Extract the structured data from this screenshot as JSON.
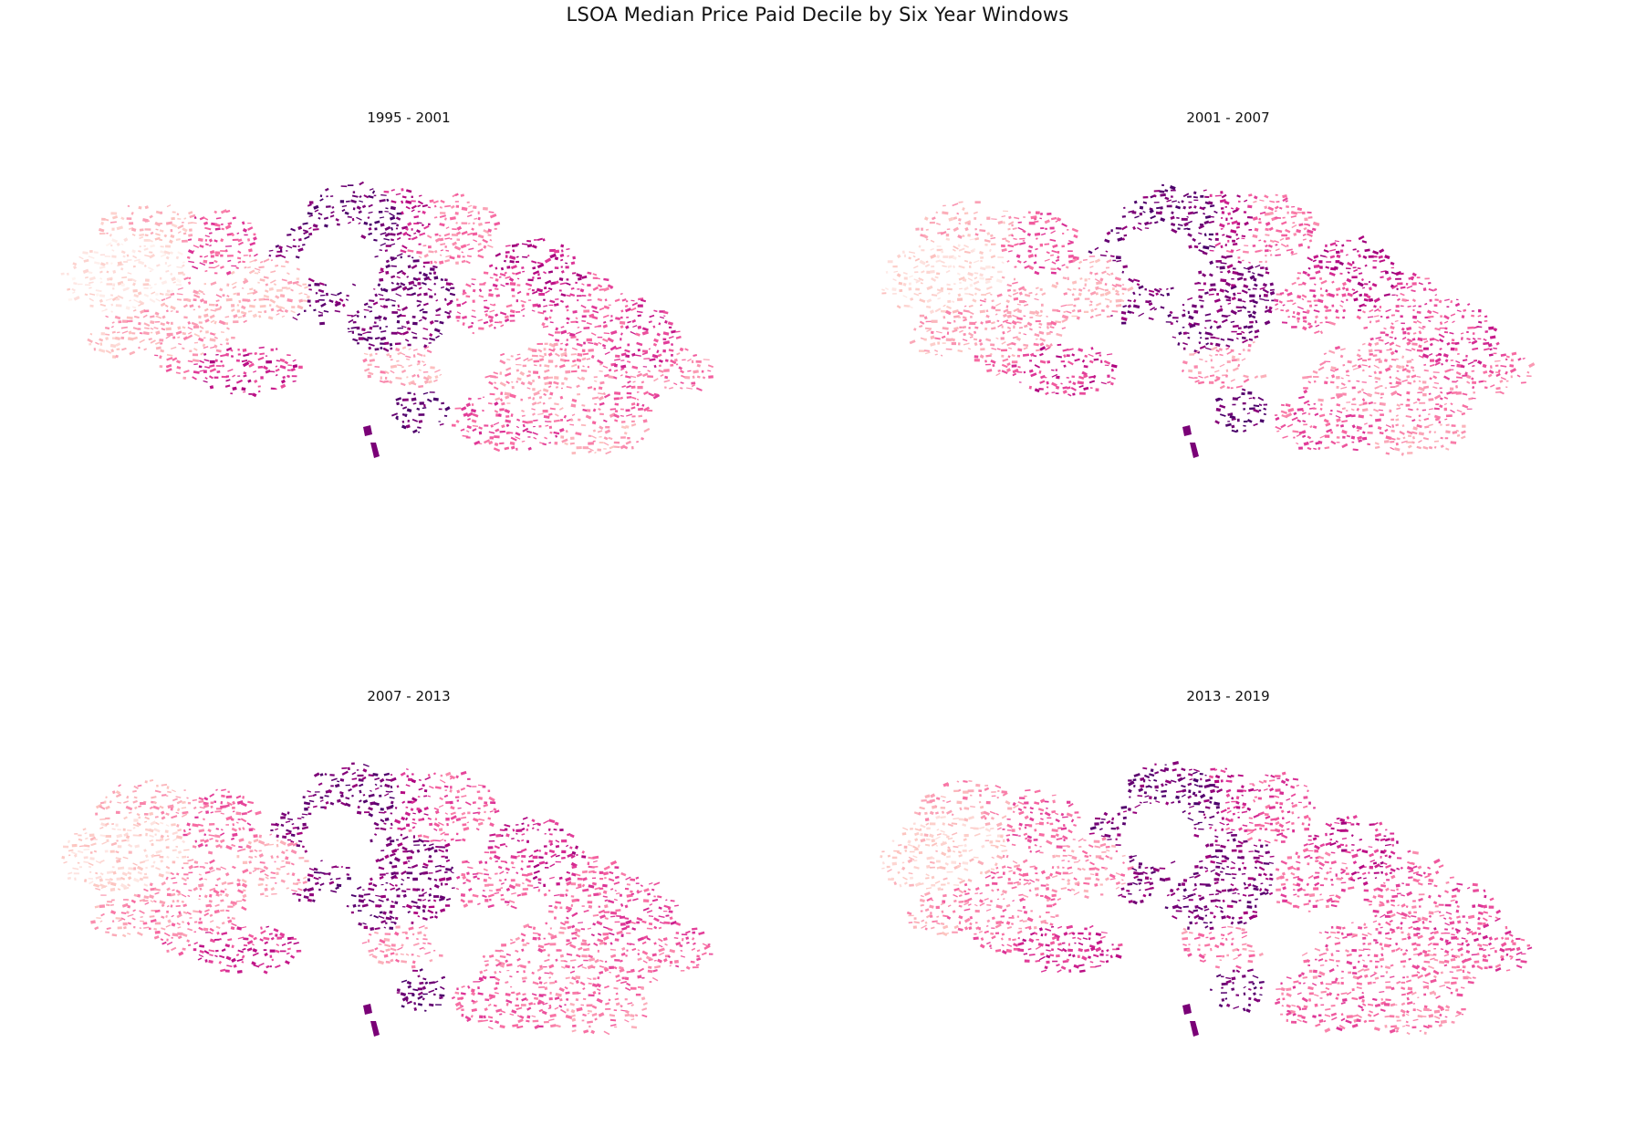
{
  "figure": {
    "title": "LSOA Median Price Paid Decile by Six Year Windows"
  },
  "colormap": {
    "name": "RdPu",
    "stops": [
      "#fff7f3",
      "#fde0dd",
      "#fcc5c0",
      "#fa9fb5",
      "#f768a1",
      "#dd3497",
      "#ae017e",
      "#7a0177",
      "#49006a"
    ]
  },
  "panels": [
    {
      "title": "1995 - 2001"
    },
    {
      "title": "2001 - 2007"
    },
    {
      "title": "2007 - 2013"
    },
    {
      "title": "2013 - 2019"
    }
  ]
}
